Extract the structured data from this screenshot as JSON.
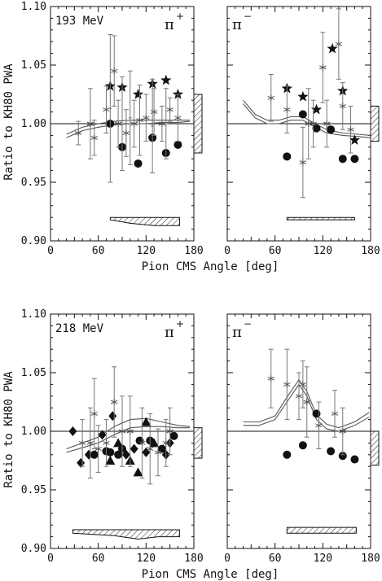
{
  "figure": {
    "ylabel": "Ratio to KH80 PWA",
    "xlabel": "Pion CMS Angle [deg]"
  },
  "chart_data": [
    {
      "type": "scatter",
      "energy_label": "193 MeV",
      "particle": "π",
      "charge": "+",
      "xlim": [
        0,
        180
      ],
      "ylim": [
        0.9,
        1.1
      ],
      "xticks": [
        "0",
        "60",
        "120",
        "180"
      ],
      "yticks": [
        "0.90",
        "0.95",
        "1.00",
        "1.05",
        "1.10"
      ],
      "reference_line": 1.0,
      "series": [
        {
          "marker": "circle",
          "points": [
            [
              75,
              1.0,
              0
            ],
            [
              90,
              0.98,
              0
            ],
            [
              110,
              0.966,
              0
            ],
            [
              128,
              0.988,
              0
            ],
            [
              145,
              0.975,
              0
            ],
            [
              160,
              0.982,
              0
            ]
          ]
        },
        {
          "marker": "star",
          "points": [
            [
              75,
              1.032,
              0
            ],
            [
              90,
              1.031,
              0
            ],
            [
              110,
              1.025,
              0
            ],
            [
              128,
              1.034,
              0
            ],
            [
              145,
              1.037,
              0
            ],
            [
              160,
              1.025,
              0
            ]
          ]
        },
        {
          "marker": "asterisk",
          "points": [
            [
              35,
              0.992,
              0.01
            ],
            [
              50,
              1.0,
              0.03
            ],
            [
              55,
              0.988,
              0.015
            ],
            [
              70,
              1.012,
              0.02
            ],
            [
              80,
              1.045,
              0.03
            ],
            [
              85,
              1.0,
              0.02
            ],
            [
              95,
              0.992,
              0.02
            ],
            [
              105,
              1.0,
              0.02
            ],
            [
              112,
              1.003,
              0.03
            ],
            [
              120,
              1.005,
              0.02
            ],
            [
              130,
              1.01,
              0.02
            ],
            [
              140,
              1.0,
              0.015
            ],
            [
              150,
              1.012,
              0.01
            ],
            [
              160,
              1.005,
              0.02
            ]
          ]
        },
        {
          "marker": "errorbar",
          "points": [
            [
              75,
              1.013,
              0.063
            ],
            [
              90,
              1.0,
              0.04
            ],
            [
              100,
              1.005,
              0.04
            ],
            [
              128,
              0.998,
              0.04
            ],
            [
              145,
              1.0,
              0.03
            ]
          ]
        }
      ],
      "curves": [
        [
          [
            20,
            0.988
          ],
          [
            40,
            0.994
          ],
          [
            60,
            0.997
          ],
          [
            80,
            0.999
          ],
          [
            100,
            1.0
          ],
          [
            120,
            1.0
          ],
          [
            140,
            1.001
          ],
          [
            160,
            1.001
          ],
          [
            175,
            1.002
          ]
        ],
        [
          [
            20,
            0.991
          ],
          [
            40,
            0.997
          ],
          [
            60,
            1.0
          ],
          [
            80,
            1.002
          ],
          [
            100,
            1.003
          ],
          [
            120,
            1.003
          ],
          [
            140,
            1.003
          ],
          [
            160,
            1.003
          ],
          [
            175,
            1.003
          ]
        ]
      ],
      "systematic_box": {
        "y_low": 0.975,
        "y_high": 1.025
      },
      "bottom_band": {
        "x_start": 75,
        "x_end": 162,
        "y_top": 0.92,
        "lower": [
          [
            75,
            0.918
          ],
          [
            100,
            0.915
          ],
          [
            130,
            0.913
          ],
          [
            162,
            0.913
          ]
        ]
      }
    },
    {
      "type": "scatter",
      "energy_label": "",
      "particle": "π",
      "charge": "−",
      "xlim": [
        0,
        180
      ],
      "ylim": [
        0.9,
        1.1
      ],
      "xticks": [
        "0",
        "60",
        "120",
        "180"
      ],
      "yticks": [],
      "reference_line": 1.0,
      "series": [
        {
          "marker": "circle",
          "points": [
            [
              75,
              0.972,
              0
            ],
            [
              95,
              1.008,
              0
            ],
            [
              112,
              0.996,
              0
            ],
            [
              130,
              0.995,
              0
            ],
            [
              145,
              0.97,
              0
            ],
            [
              160,
              0.97,
              0
            ]
          ]
        },
        {
          "marker": "star",
          "points": [
            [
              75,
              1.03,
              0
            ],
            [
              95,
              1.023,
              0
            ],
            [
              112,
              1.012,
              0
            ],
            [
              132,
              1.064,
              0
            ],
            [
              145,
              1.028,
              0
            ],
            [
              160,
              0.986,
              0
            ]
          ]
        },
        {
          "marker": "asterisk",
          "points": [
            [
              55,
              1.022,
              0.02
            ],
            [
              75,
              1.012,
              0.02
            ],
            [
              95,
              0.967,
              0.03
            ],
            [
              102,
              1.0,
              0.03
            ],
            [
              108,
              1.0,
              0.02
            ],
            [
              120,
              1.048,
              0.03
            ],
            [
              125,
              1.0,
              0.02
            ],
            [
              140,
              1.068,
              0.03
            ],
            [
              145,
              1.015,
              0.02
            ],
            [
              155,
              0.995,
              0.02
            ]
          ]
        }
      ],
      "curves": [
        [
          [
            20,
            1.02
          ],
          [
            35,
            1.008
          ],
          [
            50,
            1.003
          ],
          [
            65,
            1.003
          ],
          [
            80,
            1.006
          ],
          [
            95,
            1.006
          ],
          [
            110,
            1.0
          ],
          [
            125,
            0.995
          ],
          [
            145,
            0.992
          ],
          [
            165,
            0.991
          ],
          [
            180,
            0.99
          ]
        ],
        [
          [
            20,
            1.017
          ],
          [
            35,
            1.005
          ],
          [
            50,
            1.0
          ],
          [
            65,
            1.0
          ],
          [
            80,
            1.003
          ],
          [
            95,
            1.003
          ],
          [
            110,
            0.997
          ],
          [
            125,
            0.992
          ],
          [
            145,
            0.99
          ],
          [
            165,
            0.989
          ],
          [
            180,
            0.988
          ]
        ]
      ],
      "systematic_box": {
        "y_low": 0.985,
        "y_high": 1.015
      },
      "bottom_band": {
        "x_start": 75,
        "x_end": 160,
        "y_top": 0.92,
        "lower": [
          [
            75,
            0.918
          ],
          [
            160,
            0.918
          ]
        ]
      }
    },
    {
      "type": "scatter",
      "energy_label": "218 MeV",
      "particle": "π",
      "charge": "+",
      "xlim": [
        0,
        180
      ],
      "ylim": [
        0.9,
        1.1
      ],
      "xticks": [
        "0",
        "60",
        "120",
        "180"
      ],
      "yticks": [
        "0.90",
        "0.95",
        "1.00",
        "1.05",
        "1.10"
      ],
      "reference_line": 1.0,
      "series": [
        {
          "marker": "circle",
          "points": [
            [
              55,
              0.98,
              0
            ],
            [
              70,
              0.983,
              0
            ],
            [
              75,
              0.982,
              0
            ],
            [
              85,
              0.98,
              0
            ],
            [
              90,
              0.985,
              0
            ],
            [
              112,
              0.992,
              0
            ],
            [
              125,
              0.992,
              0
            ],
            [
              140,
              0.985,
              0
            ],
            [
              155,
              0.996,
              0
            ]
          ]
        },
        {
          "marker": "diamond",
          "points": [
            [
              28,
              1.0,
              0
            ],
            [
              38,
              0.973,
              0
            ],
            [
              48,
              0.98,
              0
            ],
            [
              65,
              0.997,
              0
            ],
            [
              78,
              1.013,
              0
            ],
            [
              95,
              0.98,
              0
            ],
            [
              105,
              0.985,
              0
            ],
            [
              120,
              0.982,
              0
            ],
            [
              145,
              0.98,
              0
            ],
            [
              150,
              0.99,
              0
            ]
          ]
        },
        {
          "marker": "triangle",
          "points": [
            [
              75,
              0.975,
              0
            ],
            [
              85,
              0.99,
              0
            ],
            [
              100,
              0.975,
              0
            ],
            [
              110,
              0.965,
              0
            ],
            [
              120,
              1.008,
              0
            ],
            [
              130,
              0.99,
              0
            ]
          ]
        },
        {
          "marker": "asterisk",
          "points": [
            [
              40,
              0.99,
              0.02
            ],
            [
              50,
              0.99,
              0.03
            ],
            [
              55,
              1.015,
              0.03
            ],
            [
              60,
              0.985,
              0.02
            ],
            [
              70,
              0.99,
              0.02
            ],
            [
              80,
              1.025,
              0.03
            ],
            [
              90,
              1.0,
              0.03
            ],
            [
              100,
              1.0,
              0.03
            ],
            [
              115,
              0.99,
              0.03
            ],
            [
              125,
              0.985,
              0.03
            ],
            [
              135,
              0.982,
              0.02
            ],
            [
              145,
              0.99,
              0.02
            ],
            [
              150,
              1.0,
              0.02
            ]
          ]
        }
      ],
      "curves": [
        [
          [
            20,
            0.982
          ],
          [
            40,
            0.986
          ],
          [
            60,
            0.99
          ],
          [
            80,
            0.997
          ],
          [
            100,
            1.003
          ],
          [
            120,
            1.004
          ],
          [
            140,
            1.004
          ],
          [
            160,
            1.003
          ],
          [
            175,
            1.003
          ]
        ],
        [
          [
            20,
            0.985
          ],
          [
            40,
            0.99
          ],
          [
            60,
            0.995
          ],
          [
            80,
            1.004
          ],
          [
            100,
            1.01
          ],
          [
            120,
            1.011
          ],
          [
            140,
            1.008
          ],
          [
            160,
            1.005
          ],
          [
            175,
            1.004
          ]
        ]
      ],
      "systematic_box": {
        "y_low": 0.977,
        "y_high": 1.003
      },
      "bottom_band": {
        "x_start": 28,
        "x_end": 162,
        "y_top": 0.916,
        "lower": [
          [
            28,
            0.913
          ],
          [
            80,
            0.911
          ],
          [
            110,
            0.908
          ],
          [
            135,
            0.91
          ],
          [
            162,
            0.91
          ]
        ]
      }
    },
    {
      "type": "scatter",
      "energy_label": "",
      "particle": "π",
      "charge": "−",
      "xlim": [
        0,
        180
      ],
      "ylim": [
        0.9,
        1.1
      ],
      "xticks": [
        "0",
        "60",
        "120",
        "180"
      ],
      "yticks": [],
      "reference_line": 1.0,
      "series": [
        {
          "marker": "circle",
          "points": [
            [
              75,
              0.98,
              0
            ],
            [
              95,
              0.988,
              0
            ],
            [
              112,
              1.015,
              0
            ],
            [
              130,
              0.983,
              0
            ],
            [
              145,
              0.979,
              0
            ],
            [
              160,
              0.976,
              0
            ]
          ]
        },
        {
          "marker": "asterisk",
          "points": [
            [
              55,
              1.045,
              0.025
            ],
            [
              75,
              1.04,
              0.03
            ],
            [
              90,
              1.03,
              0.02
            ],
            [
              95,
              1.04,
              0.02
            ],
            [
              100,
              1.025,
              0.03
            ],
            [
              115,
              1.005,
              0.02
            ],
            [
              135,
              1.015,
              0.02
            ],
            [
              145,
              1.0,
              0.02
            ]
          ]
        }
      ],
      "curves": [
        [
          [
            20,
            1.005
          ],
          [
            40,
            1.005
          ],
          [
            60,
            1.01
          ],
          [
            75,
            1.025
          ],
          [
            90,
            1.04
          ],
          [
            100,
            1.03
          ],
          [
            112,
            1.01
          ],
          [
            125,
            1.002
          ],
          [
            140,
            1.0
          ],
          [
            160,
            1.005
          ],
          [
            178,
            1.012
          ]
        ],
        [
          [
            20,
            1.008
          ],
          [
            40,
            1.008
          ],
          [
            60,
            1.013
          ],
          [
            75,
            1.029
          ],
          [
            90,
            1.044
          ],
          [
            100,
            1.034
          ],
          [
            112,
            1.014
          ],
          [
            125,
            1.006
          ],
          [
            140,
            1.003
          ],
          [
            160,
            1.008
          ],
          [
            178,
            1.016
          ]
        ]
      ],
      "systematic_box": {
        "y_low": 0.971,
        "y_high": 1.0
      },
      "bottom_band": {
        "x_start": 75,
        "x_end": 162,
        "y_top": 0.918,
        "lower": [
          [
            75,
            0.913
          ],
          [
            162,
            0.913
          ]
        ]
      }
    }
  ]
}
